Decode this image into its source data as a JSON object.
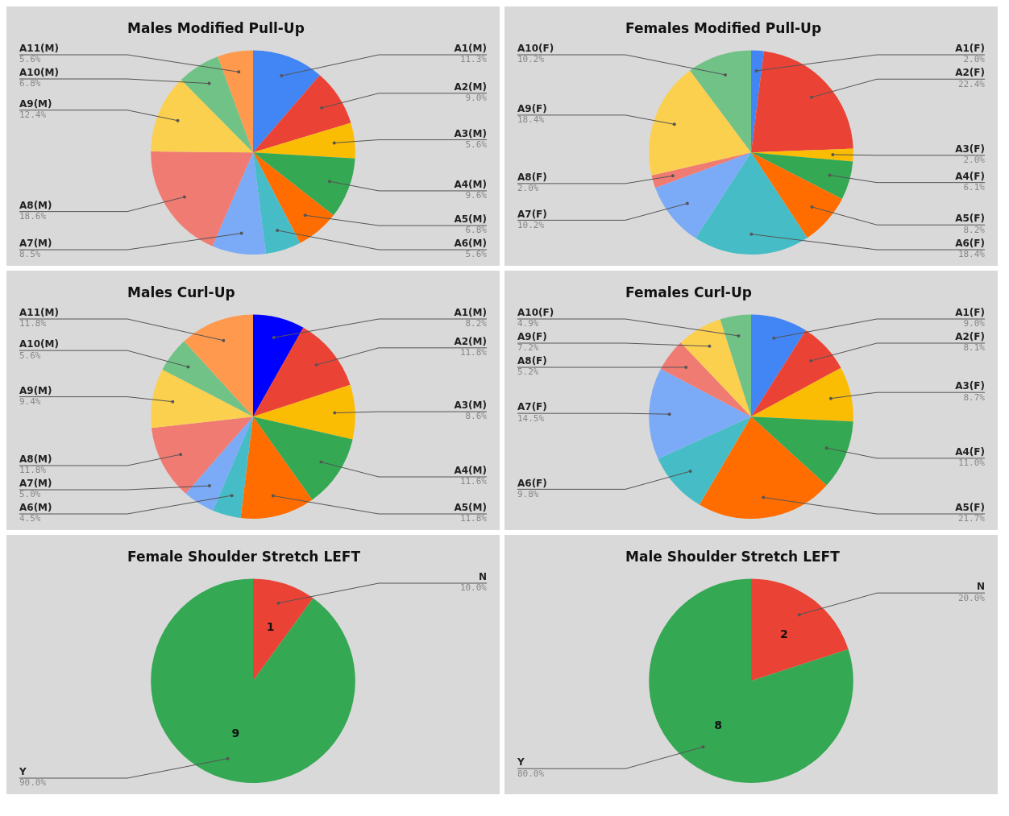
{
  "chart_data": [
    {
      "type": "pie",
      "title": "Males Modified Pull-Up",
      "categories": [
        "A1(M)",
        "A2(M)",
        "A3(M)",
        "A4(M)",
        "A5(M)",
        "A6(M)",
        "A7(M)",
        "A8(M)",
        "A9(M)",
        "A10(M)",
        "A11(M)"
      ],
      "values": [
        11.3,
        9.0,
        5.6,
        9.6,
        6.8,
        5.6,
        8.5,
        18.6,
        12.4,
        6.8,
        5.6
      ],
      "value_labels": [
        "11.3%",
        "9.0%",
        "5.6%",
        "9.6%",
        "6.8%",
        "5.6%",
        "8.5%",
        "18.6%",
        "12.4%",
        "6.8%",
        "5.6%"
      ],
      "colors": [
        "#4285f4",
        "#ea4335",
        "#fbbc04",
        "#34a853",
        "#ff6d01",
        "#46bdc6",
        "#7baaf7",
        "#f07b72",
        "#fcd04f",
        "#71c287",
        "#ff994d"
      ]
    },
    {
      "type": "pie",
      "title": "Females Modified Pull-Up",
      "categories": [
        "A1(F)",
        "A2(F)",
        "A3(F)",
        "A4(F)",
        "A5(F)",
        "A6(F)",
        "A7(F)",
        "A8(F)",
        "A9(F)",
        "A10(F)"
      ],
      "values": [
        2.0,
        22.4,
        2.0,
        6.1,
        8.2,
        18.4,
        10.2,
        2.0,
        18.4,
        10.2
      ],
      "value_labels": [
        "2.0%",
        "22.4%",
        "2.0%",
        "6.1%",
        "8.2%",
        "18.4%",
        "10.2%",
        "2.0%",
        "18.4%",
        "10.2%"
      ],
      "colors": [
        "#4285f4",
        "#ea4335",
        "#fbbc04",
        "#34a853",
        "#ff6d01",
        "#46bdc6",
        "#7baaf7",
        "#f07b72",
        "#fcd04f",
        "#71c287"
      ]
    },
    {
      "type": "pie",
      "title": "Males Curl-Up",
      "categories": [
        "A1(M)",
        "A2(M)",
        "A3(M)",
        "A4(M)",
        "A5(M)",
        "A6(M)",
        "A7(M)",
        "A8(M)",
        "A9(M)",
        "A10(M)",
        "A11(M)"
      ],
      "values": [
        8.2,
        11.8,
        8.6,
        11.6,
        11.8,
        4.5,
        5.0,
        11.8,
        9.4,
        5.6,
        11.8
      ],
      "value_labels": [
        "8.2%",
        "11.8%",
        "8.6%",
        "11.6%",
        "11.8%",
        "4.5%",
        "5.0%",
        "11.8%",
        "9.4%",
        "5.6%",
        "11.8%"
      ],
      "colors": [
        "#0000ff",
        "#ea4335",
        "#fbbc04",
        "#34a853",
        "#ff6d01",
        "#46bdc6",
        "#7baaf7",
        "#f07b72",
        "#fcd04f",
        "#71c287",
        "#ff994d"
      ]
    },
    {
      "type": "pie",
      "title": "Females Curl-Up",
      "categories": [
        "A1(F)",
        "A2(F)",
        "A3(F)",
        "A4(F)",
        "A5(F)",
        "A6(F)",
        "A7(F)",
        "A8(F)",
        "A9(F)",
        "A10(F)"
      ],
      "values": [
        9.0,
        8.1,
        8.7,
        11.0,
        21.7,
        9.8,
        14.5,
        5.2,
        7.2,
        4.9
      ],
      "value_labels": [
        "9.0%",
        "8.1%",
        "8.7%",
        "11.0%",
        "21.7%",
        "9.8%",
        "14.5%",
        "5.2%",
        "7.2%",
        "4.9%"
      ],
      "colors": [
        "#4285f4",
        "#ea4335",
        "#fbbc04",
        "#34a853",
        "#ff6d01",
        "#46bdc6",
        "#7baaf7",
        "#f07b72",
        "#fcd04f",
        "#71c287"
      ]
    },
    {
      "type": "pie",
      "title": "Female Shoulder Stretch LEFT",
      "categories": [
        "N",
        "Y"
      ],
      "values": [
        10.0,
        90.0
      ],
      "value_labels": [
        "10.0%",
        "90.0%"
      ],
      "annotations": [
        "1",
        "9"
      ],
      "colors": [
        "#ea4335",
        "#34a853"
      ]
    },
    {
      "type": "pie",
      "title": "Male Shoulder Stretch LEFT",
      "categories": [
        "N",
        "Y"
      ],
      "values": [
        20.0,
        80.0
      ],
      "value_labels": [
        "20.0%",
        "80.0%"
      ],
      "annotations": [
        "2",
        "8"
      ],
      "colors": [
        "#ea4335",
        "#34a853"
      ]
    }
  ]
}
